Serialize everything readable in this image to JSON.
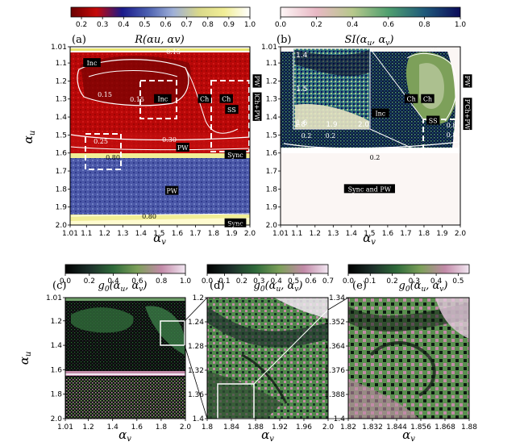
{
  "chart_data": [
    {
      "panel": "(a)",
      "type": "heatmap",
      "title": "R(αu, αv)",
      "xlabel": "αv",
      "ylabel": "αu",
      "xlim": [
        1.01,
        2.0
      ],
      "ylim": [
        1.01,
        2.0
      ],
      "xticks": [
        "1.01",
        "1.1",
        "1.2",
        "1.3",
        "1.4",
        "1.5",
        "1.6",
        "1.7",
        "1.8",
        "1.9",
        "2.0"
      ],
      "yticks": [
        "1.01",
        "1.1",
        "1.2",
        "1.3",
        "1.4",
        "1.5",
        "1.6",
        "1.7",
        "1.8",
        "1.9",
        "2.0"
      ],
      "colorbar": {
        "range": [
          0.15,
          1.0
        ],
        "ticks": [
          "0.2",
          "0.3",
          "0.4",
          "0.5",
          "0.6",
          "0.7",
          "0.8",
          "0.9",
          "1.0"
        ],
        "colors": [
          "#6a0000",
          "#c60a0a",
          "#1a1a8a",
          "#4a5fb0",
          "#9fb0d8",
          "#d9d88a",
          "#f1ee96",
          "#ffffff"
        ]
      },
      "regions": [
        {
          "label": "Inc",
          "u": 1.1,
          "v": 1.13
        },
        {
          "label": "Inc",
          "u": 1.3,
          "v": 1.52
        },
        {
          "label": "Ch",
          "u": 1.3,
          "v": 1.75
        },
        {
          "label": "Ch",
          "u": 1.3,
          "v": 1.87
        },
        {
          "label": "SS",
          "u": 1.36,
          "v": 1.9
        },
        {
          "label": "PW",
          "u": 1.57,
          "v": 1.63
        },
        {
          "label": "Sync",
          "u": 1.61,
          "v": 1.92
        },
        {
          "label": "PW",
          "u": 1.81,
          "v": 1.57
        },
        {
          "label": "Sync",
          "u": 1.99,
          "v": 1.92
        },
        {
          "label": "PW",
          "u": 1.2,
          "v": 2.04
        },
        {
          "label": "PW",
          "u": 1.3,
          "v": 2.04
        },
        {
          "label": "Ch+PW",
          "u": 1.35,
          "v": 2.04
        }
      ],
      "contour_labels": [
        "0.15",
        "0.15",
        "0.15",
        "0.25",
        "0.30",
        "0.80",
        "0.80"
      ],
      "boxes": [
        {
          "u": [
            1.22,
            1.36
          ],
          "v": [
            1.44,
            1.58
          ]
        },
        {
          "u": [
            1.22,
            1.58
          ],
          "v": [
            1.8,
            2.0
          ]
        },
        {
          "u": [
            1.52,
            1.67
          ],
          "v": [
            1.1,
            1.27
          ]
        }
      ]
    },
    {
      "panel": "(b)",
      "type": "heatmap",
      "title": "SI(αu, αv)",
      "xlabel": "αv",
      "ylabel": "",
      "xlim": [
        1.01,
        2.0
      ],
      "ylim": [
        1.01,
        2.0
      ],
      "xticks": [
        "1.01",
        "1.1",
        "1.2",
        "1.3",
        "1.4",
        "1.5",
        "1.6",
        "1.7",
        "1.8",
        "1.9",
        "2.0"
      ],
      "yticks": [
        "1.01",
        "1.1",
        "1.2",
        "1.3",
        "1.4",
        "1.5",
        "1.6",
        "1.7",
        "1.8",
        "1.9",
        "2.0"
      ],
      "colorbar": {
        "range": [
          0.0,
          1.0
        ],
        "ticks": [
          "0.0",
          "0.2",
          "0.4",
          "0.6",
          "0.8",
          "1.0"
        ],
        "colors": [
          "#fdf6f6",
          "#e8b8c4",
          "#b7c88c",
          "#4f9f6f",
          "#1f5a7a",
          "#0b0b5a"
        ]
      },
      "inset": {
        "xticks": [
          "1.8",
          "1.9",
          "2.0"
        ],
        "yticks": [
          "1.4",
          "1.5",
          "1.6"
        ]
      },
      "regions": [
        {
          "label": "Ch",
          "u": 1.3,
          "v": 1.73
        },
        {
          "label": "Ch",
          "u": 1.3,
          "v": 1.82
        },
        {
          "label": "Inc",
          "u": 1.38,
          "v": 1.56
        },
        {
          "label": "SS",
          "u": 1.42,
          "v": 1.85
        },
        {
          "label": "Sync and PW",
          "u": 1.8,
          "v": 1.5
        },
        {
          "label": "PW",
          "u": 1.2,
          "v": 2.04
        },
        {
          "label": "PW",
          "u": 1.33,
          "v": 2.04
        },
        {
          "label": "Ch+PW",
          "u": 1.4,
          "v": 2.04
        }
      ],
      "contour_labels": [
        "0.8",
        "0.2",
        "0.2",
        "0.2",
        "0.8",
        "0.8"
      ],
      "boxes": [
        {
          "u": [
            1.52,
            1.62
          ],
          "v": [
            1.8,
            2.0
          ]
        }
      ]
    },
    {
      "panel": "(c)",
      "type": "heatmap",
      "title": "g0(αu, αv)",
      "xlabel": "αv",
      "ylabel": "αu",
      "xlim": [
        1.01,
        2.0
      ],
      "ylim": [
        1.01,
        2.0
      ],
      "xticks": [
        "1.01",
        "1.2",
        "1.4",
        "1.6",
        "1.8",
        "2.0"
      ],
      "yticks": [
        "1.01",
        "1.2",
        "1.4",
        "1.6",
        "1.8",
        "2.0"
      ],
      "colorbar": {
        "range": [
          0.0,
          1.0
        ],
        "ticks": [
          "0.0",
          "0.2",
          "0.4",
          "0.6",
          "0.8",
          "1.0"
        ],
        "colors": [
          "#000000",
          "#1c2f2a",
          "#2f6a3a",
          "#7da05a",
          "#c28aa8",
          "#f2e7f2"
        ]
      },
      "boxes": [
        {
          "u": [
            1.2,
            1.4
          ],
          "v": [
            1.82,
            2.0
          ]
        }
      ]
    },
    {
      "panel": "(d)",
      "type": "heatmap",
      "title": "g0(αu, αv)",
      "xlabel": "αv",
      "ylabel": "",
      "xlim": [
        1.8,
        2.0
      ],
      "ylim": [
        1.2,
        1.4
      ],
      "xticks": [
        "1.8",
        "1.84",
        "1.88",
        "1.92",
        "1.96",
        "2.0"
      ],
      "yticks": [
        "1.2",
        "1.24",
        "1.28",
        "1.32",
        "1.36",
        "1.4"
      ],
      "colorbar": {
        "range": [
          0.0,
          0.7
        ],
        "ticks": [
          "0.0",
          "0.1",
          "0.2",
          "0.3",
          "0.4",
          "0.5",
          "0.6",
          "0.7"
        ],
        "colors": [
          "#000000",
          "#1c2f2a",
          "#2f6a3a",
          "#7da05a",
          "#c28aa8",
          "#f2e7f2"
        ]
      },
      "boxes": [
        {
          "u": [
            1.34,
            1.4
          ],
          "v": [
            1.82,
            1.88
          ]
        }
      ]
    },
    {
      "panel": "(e)",
      "type": "heatmap",
      "title": "g0(αu, αv)",
      "xlabel": "αv",
      "ylabel": "",
      "xlim": [
        1.82,
        1.88
      ],
      "ylim": [
        1.34,
        1.4
      ],
      "xticks": [
        "1.82",
        "1.832",
        "1.844",
        "1.856",
        "1.868",
        "1.88"
      ],
      "yticks": [
        "1.34",
        "1.352",
        "1.364",
        "1.376",
        "1.388",
        "1.4"
      ],
      "colorbar": {
        "range": [
          0.0,
          0.55
        ],
        "ticks": [
          "0.0",
          "0.1",
          "0.2",
          "0.3",
          "0.4",
          "0.5"
        ],
        "colors": [
          "#000000",
          "#1c2f2a",
          "#2f6a3a",
          "#7da05a",
          "#c28aa8",
          "#f2e7f2"
        ]
      }
    }
  ]
}
